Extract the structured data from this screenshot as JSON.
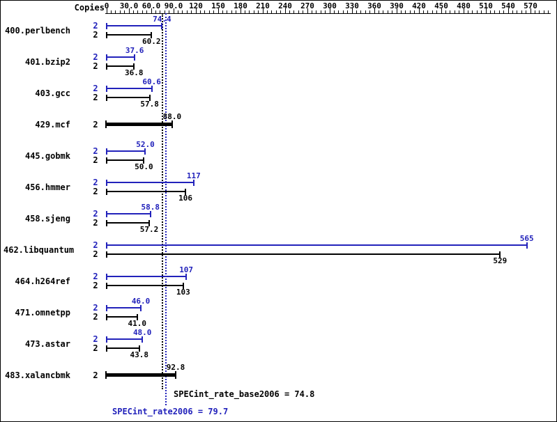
{
  "chart_data": {
    "type": "bar",
    "orientation": "horizontal",
    "copies_label": "Copies",
    "colors": {
      "peak": "#2222bb",
      "base": "#000000"
    },
    "axis": {
      "min": 0,
      "max": 570,
      "major_step": 30,
      "minor_step": 6,
      "tick_labels": [
        "0",
        "30.0",
        "60.0",
        "90.0",
        "120",
        "150",
        "180",
        "210",
        "240",
        "270",
        "300",
        "330",
        "360",
        "390",
        "420",
        "450",
        "480",
        "510",
        "540",
        "570"
      ]
    },
    "benchmarks": [
      {
        "name": "400.perlbench",
        "bars": [
          {
            "type": "peak",
            "copies": "2",
            "value": 74.4,
            "label": "74.4"
          },
          {
            "type": "base",
            "copies": "2",
            "value": 60.2,
            "label": "60.2"
          }
        ]
      },
      {
        "name": "401.bzip2",
        "bars": [
          {
            "type": "peak",
            "copies": "2",
            "value": 37.6,
            "label": "37.6"
          },
          {
            "type": "base",
            "copies": "2",
            "value": 36.8,
            "label": "36.8"
          }
        ]
      },
      {
        "name": "403.gcc",
        "bars": [
          {
            "type": "peak",
            "copies": "2",
            "value": 60.6,
            "label": "60.6"
          },
          {
            "type": "base",
            "copies": "2",
            "value": 57.8,
            "label": "57.8"
          }
        ]
      },
      {
        "name": "429.mcf",
        "bars": [
          {
            "type": "both",
            "copies": "2",
            "value": 88.0,
            "label": "88.0"
          }
        ]
      },
      {
        "name": "445.gobmk",
        "bars": [
          {
            "type": "peak",
            "copies": "2",
            "value": 52.0,
            "label": "52.0"
          },
          {
            "type": "base",
            "copies": "2",
            "value": 50.0,
            "label": "50.0"
          }
        ]
      },
      {
        "name": "456.hmmer",
        "bars": [
          {
            "type": "peak",
            "copies": "2",
            "value": 117,
            "label": "117"
          },
          {
            "type": "base",
            "copies": "2",
            "value": 106,
            "label": "106"
          }
        ]
      },
      {
        "name": "458.sjeng",
        "bars": [
          {
            "type": "peak",
            "copies": "2",
            "value": 58.8,
            "label": "58.8"
          },
          {
            "type": "base",
            "copies": "2",
            "value": 57.2,
            "label": "57.2"
          }
        ]
      },
      {
        "name": "462.libquantum",
        "bars": [
          {
            "type": "peak",
            "copies": "2",
            "value": 565,
            "label": "565"
          },
          {
            "type": "base",
            "copies": "2",
            "value": 529,
            "label": "529"
          }
        ]
      },
      {
        "name": "464.h264ref",
        "bars": [
          {
            "type": "peak",
            "copies": "2",
            "value": 107,
            "label": "107"
          },
          {
            "type": "base",
            "copies": "2",
            "value": 103,
            "label": "103"
          }
        ]
      },
      {
        "name": "471.omnetpp",
        "bars": [
          {
            "type": "peak",
            "copies": "2",
            "value": 46.0,
            "label": "46.0"
          },
          {
            "type": "base",
            "copies": "2",
            "value": 41.0,
            "label": "41.0"
          }
        ]
      },
      {
        "name": "473.astar",
        "bars": [
          {
            "type": "peak",
            "copies": "2",
            "value": 48.0,
            "label": "48.0"
          },
          {
            "type": "base",
            "copies": "2",
            "value": 43.8,
            "label": "43.8"
          }
        ]
      },
      {
        "name": "483.xalancbmk",
        "bars": [
          {
            "type": "both",
            "copies": "2",
            "value": 92.8,
            "label": "92.8"
          }
        ]
      }
    ],
    "summary": {
      "base": {
        "text": "SPECint_rate_base2006 = 74.8",
        "value": 74.8,
        "color": "#000000"
      },
      "peak": {
        "text": "SPECint_rate2006 = 79.7",
        "value": 79.7,
        "color": "#2222bb"
      }
    }
  }
}
